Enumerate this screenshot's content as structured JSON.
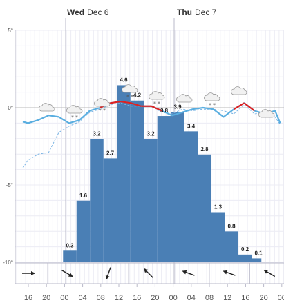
{
  "colors": {
    "bar": "#4a7fb5",
    "temperature": "#5aaee0",
    "temperature_above_zero": "#dd2222",
    "dew_point": "#7ab4e4",
    "grid_minor": "#ececf4",
    "grid_major": "#b8b8c8",
    "zero_line": "#b8b8b8",
    "cloud_fill": "#f1f1f1",
    "cloud_stroke": "#999999",
    "arrow": "#222222"
  },
  "chart_data": {
    "type": "bar",
    "days": [
      {
        "weekday": "Wed",
        "date": "Dec 6"
      },
      {
        "weekday": "Thu",
        "date": "Dec 7"
      }
    ],
    "y_axis": {
      "min": -10,
      "max": 5,
      "ticks": [
        {
          "value": 5,
          "label": "5°"
        },
        {
          "value": 0,
          "label": "0°"
        },
        {
          "value": -5,
          "label": "-5°"
        },
        {
          "value": -10,
          "label": "-10°"
        }
      ]
    },
    "x_ticks": [
      "16",
      "20",
      "00",
      "04",
      "08",
      "12",
      "16",
      "20",
      "00",
      "04",
      "08",
      "12",
      "16",
      "20",
      "00"
    ],
    "bars": [
      {
        "hour": "01",
        "value": 0.3,
        "label": "0.3"
      },
      {
        "hour": "03",
        "value": 1.6,
        "label": "1.6"
      },
      {
        "hour": "05",
        "value": 3.2,
        "label": "3.2"
      },
      {
        "hour": "07",
        "value": 2.7,
        "label": "2.7"
      },
      {
        "hour": "09",
        "value": 4.6,
        "label": "4.6"
      },
      {
        "hour": "11",
        "value": 4.2,
        "label": "4.2"
      },
      {
        "hour": "13",
        "value": 3.2,
        "label": "3.2"
      },
      {
        "hour": "15",
        "value": 3.8,
        "label": "3.8"
      },
      {
        "hour": "17",
        "value": 3.9,
        "label": "3.9"
      },
      {
        "hour": "19",
        "value": 3.4,
        "label": "3.4"
      },
      {
        "hour": "21",
        "value": 2.8,
        "label": "2.8"
      },
      {
        "hour": "23",
        "value": 1.3,
        "label": "1.3"
      },
      {
        "hour": "01",
        "value": 0.8,
        "label": "0.8"
      },
      {
        "hour": "03",
        "value": 0.2,
        "label": "0.2"
      },
      {
        "hour": "05",
        "value": 0.1,
        "label": "0.1"
      }
    ],
    "temperature": [
      [
        -0.5,
        -0.9
      ],
      [
        0,
        -1.0
      ],
      [
        1,
        -0.8
      ],
      [
        2,
        -0.5
      ],
      [
        3,
        -0.6
      ],
      [
        4,
        -1.0
      ],
      [
        5,
        -0.8
      ],
      [
        6,
        -0.2
      ],
      [
        7,
        0.0
      ],
      [
        8,
        0.3
      ],
      [
        9,
        0.4
      ],
      [
        10,
        0.3
      ],
      [
        11,
        0.1
      ],
      [
        12,
        0.1
      ],
      [
        13,
        -0.2
      ],
      [
        14,
        -0.5
      ],
      [
        15,
        -0.3
      ],
      [
        16,
        -0.1
      ],
      [
        17,
        0.0
      ],
      [
        18,
        -0.1
      ],
      [
        19,
        -0.6
      ],
      [
        20,
        -0.1
      ],
      [
        21,
        0.3
      ],
      [
        22,
        -0.2
      ],
      [
        23,
        -0.4
      ],
      [
        24,
        -0.2
      ],
      [
        24.5,
        -1.0
      ]
    ],
    "dew_point": [
      [
        -0.5,
        -3.9
      ],
      [
        0,
        -3.4
      ],
      [
        1,
        -3.0
      ],
      [
        2,
        -2.9
      ],
      [
        3,
        -1.6
      ],
      [
        4,
        -1.2
      ],
      [
        5,
        -0.9
      ],
      [
        6,
        -0.3
      ],
      [
        7,
        -0.1
      ],
      [
        8,
        0.2
      ],
      [
        9,
        0.3
      ],
      [
        10,
        0.1
      ],
      [
        11,
        0.1
      ],
      [
        12,
        0.1
      ],
      [
        13,
        -0.3
      ],
      [
        14,
        -0.4
      ],
      [
        15,
        -0.1
      ],
      [
        16,
        -0.2
      ],
      [
        17,
        -0.1
      ],
      [
        18,
        -0.1
      ],
      [
        19,
        -0.2
      ],
      [
        20,
        -0.4
      ],
      [
        21,
        0.2
      ],
      [
        22,
        -0.4
      ],
      [
        23,
        -0.3
      ],
      [
        24,
        -0.6
      ],
      [
        24.5,
        -1.1
      ]
    ],
    "weather_icons": [
      {
        "hour": 0,
        "type": "cloud"
      },
      {
        "hour": 2,
        "type": "cloud-snow"
      },
      {
        "hour": 4,
        "type": "cloud-snow"
      },
      {
        "hour": 6,
        "type": "cloud-snow"
      },
      {
        "hour": 8,
        "type": "cloud-snow"
      },
      {
        "hour": 10,
        "type": "cloud"
      },
      {
        "hour": 12,
        "type": "cloud-snow"
      },
      {
        "hour": 14,
        "type": "cloud"
      },
      {
        "hour": 16,
        "type": "cloud"
      }
    ],
    "wind": [
      {
        "hour": -7,
        "direction_deg": 90
      },
      {
        "hour": 0,
        "direction_deg": 120
      },
      {
        "hour": 6,
        "direction_deg": 200
      },
      {
        "hour": 12,
        "direction_deg": 315
      },
      {
        "hour": 18,
        "direction_deg": 290
      },
      {
        "hour": 24,
        "direction_deg": 290
      },
      {
        "hour": 30,
        "direction_deg": 300
      },
      {
        "hour": 36,
        "direction_deg": 300
      },
      {
        "hour": 41,
        "direction_deg": 320
      }
    ]
  }
}
